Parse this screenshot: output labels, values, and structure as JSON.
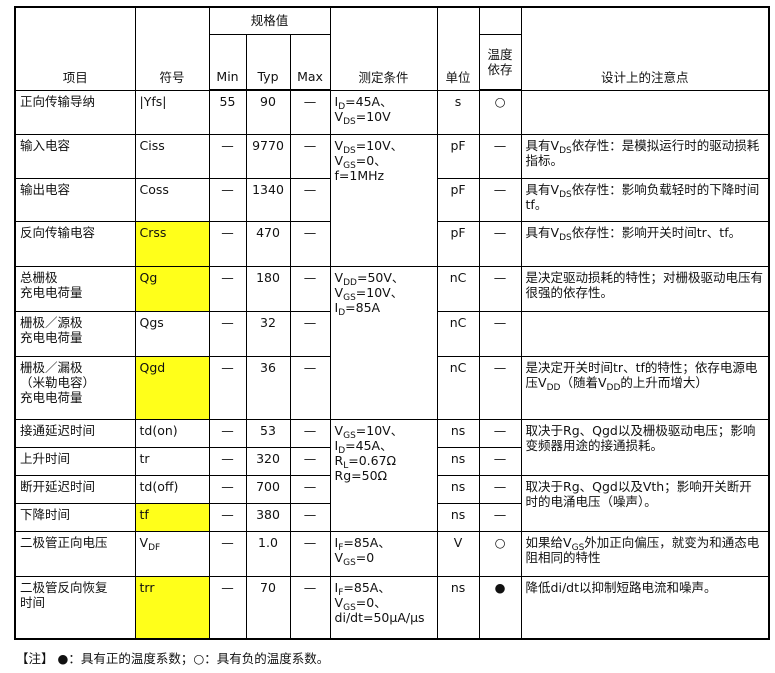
{
  "header": {
    "item": "项目",
    "symbol": "符号",
    "spec_group": "规格值",
    "min": "Min",
    "typ": "Typ",
    "max": "Max",
    "condition": "测定条件",
    "unit": "单位",
    "temp": "温度\n依存",
    "design_note": "设计上的注意点"
  },
  "highlight_color": "#ffff1a",
  "rows": [
    {
      "item": "正向传输导纳",
      "symbol": "|Yfs|",
      "min": "55",
      "typ": "90",
      "max": "—",
      "cond": "I_{D}=45A、\nV_{DS}=10V",
      "unit": "s",
      "temp": "○",
      "note": ""
    },
    {
      "item": "输入电容",
      "symbol": "Ciss",
      "min": "—",
      "typ": "9770",
      "max": "—",
      "cond": "V_{DS}=10V、\nV_{GS}=0、\nf=1MHz",
      "unit": "pF",
      "temp": "—",
      "note": "具有V_{DS}依存性：是模拟运行时的驱动损耗指标。"
    },
    {
      "item": "输出电容",
      "symbol": "Coss",
      "min": "—",
      "typ": "1340",
      "max": "—",
      "unit": "pF",
      "temp": "—",
      "note": "具有V_{DS}依存性：影响负载轻时的下降时间tf。"
    },
    {
      "item": "反向传输电容",
      "symbol": "Crss",
      "highlight": true,
      "min": "—",
      "typ": "470",
      "max": "—",
      "unit": "pF",
      "temp": "—",
      "note": "具有V_{DS}依存性：影响开关时间tr、tf。"
    },
    {
      "item": "总栅极\n充电电荷量",
      "symbol": "Qg",
      "highlight": true,
      "min": "—",
      "typ": "180",
      "max": "—",
      "cond": "V_{DD}=50V、\nV_{GS}=10V、\nI_{D}=85A",
      "unit": "nC",
      "temp": "—",
      "note": "是决定驱动损耗的特性；对栅极驱动电压有很强的依存性。"
    },
    {
      "item": "栅极／源极\n充电电荷量",
      "symbol": "Qgs",
      "min": "—",
      "typ": "32",
      "max": "—",
      "unit": "nC",
      "temp": "—",
      "note": ""
    },
    {
      "item": "栅极／漏极\n（米勒电容）\n充电电荷量",
      "symbol": "Qgd",
      "highlight": true,
      "min": "—",
      "typ": "36",
      "max": "—",
      "unit": "nC",
      "temp": "—",
      "note": "是决定开关时间tr、tf的特性；依存电源电压V_{DD}（随着V_{DD}的上升而增大）"
    },
    {
      "item": "接通延迟时间",
      "symbol": "td(on)",
      "min": "—",
      "typ": "53",
      "max": "—",
      "cond": "V_{GS}=10V、\nI_{D}=45A、\nR_{L}=0.67Ω\nRg=50Ω",
      "unit": "ns",
      "temp": "—",
      "note": "取决于Rg、Qgd以及栅极驱动电压；影响变频器用途的接通损耗。"
    },
    {
      "item": "上升时间",
      "symbol": "tr",
      "min": "—",
      "typ": "320",
      "max": "—",
      "unit": "ns",
      "temp": "—"
    },
    {
      "item": "断开延迟时间",
      "symbol": "td(off)",
      "min": "—",
      "typ": "700",
      "max": "—",
      "unit": "ns",
      "temp": "—",
      "note": "取决于Rg、Qgd以及Vth；影响开关断开时的电涌电压（噪声）。"
    },
    {
      "item": "下降时间",
      "symbol": "tf",
      "highlight": true,
      "min": "—",
      "typ": "380",
      "max": "—",
      "unit": "ns",
      "temp": "—"
    },
    {
      "item": "二极管正向电压",
      "symbol": "V_{DF}",
      "min": "—",
      "typ": "1.0",
      "max": "—",
      "cond": "I_{F}=85A、\nV_{GS}=0",
      "unit": "V",
      "temp": "○",
      "note": "如果给V_{GS}外加正向偏压，就变为和通态电阻相同的特性"
    },
    {
      "item": "二极管反向恢复\n时间",
      "symbol": "trr",
      "highlight": true,
      "min": "—",
      "typ": "70",
      "max": "—",
      "cond": "I_{F}=85A、\nV_{GS}=0、\ndi/dt=50μA/μs",
      "unit": "ns",
      "temp": "●",
      "note": "降低di/dt以抑制短路电流和噪声。"
    }
  ],
  "footnote": "【注】 ●：具有正的温度系数；○：具有负的温度系数。"
}
